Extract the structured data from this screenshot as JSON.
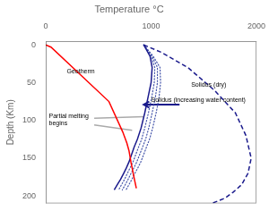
{
  "chart_data": {
    "type": "line",
    "title": "Temperature °C",
    "y_label": "Depth (Km)",
    "xlim": [
      0,
      2000
    ],
    "ylim": [
      210,
      -5
    ],
    "xticks": [
      0,
      1000,
      2000
    ],
    "yticks": [
      0,
      50,
      100,
      150,
      200
    ],
    "grid": false,
    "series": [
      {
        "x": [
          0,
          50,
          600,
          730,
          770,
          790,
          800,
          810,
          820,
          830,
          840,
          860
        ],
        "values": [
          0,
          3,
          75,
          115,
          130,
          140,
          148,
          156,
          163,
          170,
          177,
          190
        ],
        "color": "red",
        "line_style": "solid"
      },
      {
        "x": [
          930,
          1100,
          1350,
          1600,
          1800,
          1900,
          1950,
          1920,
          1860,
          1780,
          1700,
          1630,
          1570
        ],
        "values": [
          0,
          10,
          30,
          60,
          90,
          120,
          150,
          170,
          185,
          195,
          203,
          207,
          210
        ],
        "color": "#1a1a8c",
        "line_style": "dashed"
      },
      {
        "x": [
          930,
          990,
          1010,
          1000,
          970,
          940,
          905,
          870,
          840,
          815,
          790,
          765,
          740,
          710,
          680,
          650
        ],
        "values": [
          0,
          15,
          30,
          50,
          70,
          90,
          110,
          125,
          135,
          145,
          155,
          163,
          170,
          178,
          185,
          192
        ],
        "color": "#1a1a8c",
        "line_style": "solid"
      },
      {
        "x": [
          930,
          1000,
          1035,
          1030,
          1005,
          975,
          940,
          910,
          882,
          855,
          828,
          800,
          775,
          748,
          720,
          692
        ],
        "values": [
          0,
          15,
          30,
          50,
          70,
          90,
          110,
          125,
          135,
          145,
          155,
          163,
          170,
          178,
          185,
          192
        ],
        "color": "#4455aa",
        "line_style": "dotted"
      },
      {
        "x": [
          930,
          1010,
          1060,
          1060,
          1040,
          1010,
          978,
          948,
          920,
          892,
          864,
          836,
          810,
          782,
          755,
          727
        ],
        "values": [
          0,
          15,
          30,
          50,
          70,
          90,
          110,
          125,
          135,
          145,
          155,
          163,
          170,
          178,
          185,
          192
        ],
        "color": "#4455aa",
        "line_style": "dotted"
      },
      {
        "x": [
          930,
          1020,
          1085,
          1090,
          1075,
          1048,
          1015,
          985,
          957,
          930,
          902,
          874,
          846,
          818,
          790,
          762
        ],
        "values": [
          0,
          15,
          30,
          50,
          70,
          90,
          110,
          125,
          135,
          145,
          155,
          163,
          170,
          178,
          185,
          192
        ],
        "color": "#4455aa",
        "line_style": "dotted"
      },
      {
        "x": [
          1270,
          930
        ],
        "values": [
          79,
          79
        ],
        "color": "#1a1a8c",
        "line_style": "solid",
        "marker": "arrow"
      },
      {
        "x": [
          930,
          460
        ],
        "values": [
          95,
          97
        ],
        "color": "#aaaaaa",
        "line_style": "solid"
      },
      {
        "x": [
          820,
          460
        ],
        "values": [
          113,
          106
        ],
        "color": "#aaaaaa",
        "line_style": "solid"
      }
    ],
    "annotations": [
      {
        "text": "Geotherm",
        "x": 200,
        "y": 38
      },
      {
        "text": "Solidus (dry)",
        "x": 1380,
        "y": 55
      },
      {
        "text": "Solidus (increasing water content)",
        "x": 1000,
        "y": 75
      },
      {
        "text": "Partial melting\nbegins",
        "x": 30,
        "y": 97
      }
    ]
  }
}
